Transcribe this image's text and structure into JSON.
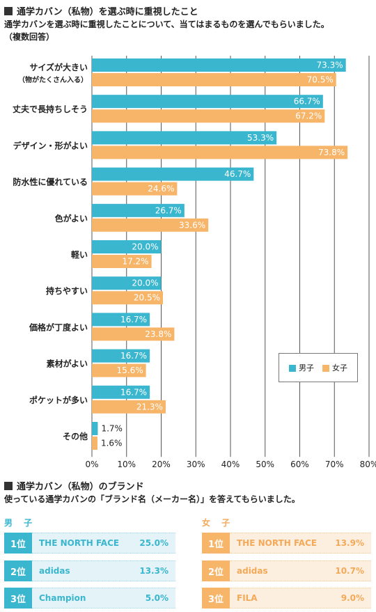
{
  "section1": {
    "title": "通学カバン（私物）を選ぶ時に重視したこと",
    "desc_line1": "通学カバンを選ぶ時に重視したことについて、当てはまるものを選んでもらいました。",
    "desc_line2": "（複数回答）"
  },
  "chart_data": {
    "type": "bar",
    "orientation": "horizontal",
    "categories": [
      [
        "サイズが大きい",
        "（物がたくさん入る）"
      ],
      [
        "丈夫で長持ちしそう"
      ],
      [
        "デザイン・形がよい"
      ],
      [
        "防水性に優れている"
      ],
      [
        "色がよい"
      ],
      [
        "軽い"
      ],
      [
        "持ちやすい"
      ],
      [
        "価格が丁度よい"
      ],
      [
        "素材がよい"
      ],
      [
        "ポケットが多い"
      ],
      [
        "その他"
      ]
    ],
    "series": [
      {
        "name": "男子",
        "color": "#3ab6cf",
        "values": [
          73.3,
          66.7,
          53.3,
          46.7,
          26.7,
          20.0,
          20.0,
          16.7,
          16.7,
          16.7,
          1.7
        ]
      },
      {
        "name": "女子",
        "color": "#f7b56a",
        "values": [
          70.5,
          67.2,
          73.8,
          24.6,
          33.6,
          17.2,
          20.5,
          23.8,
          15.6,
          21.3,
          1.6
        ]
      }
    ],
    "value_labels": [
      [
        "73.3%",
        "66.7%",
        "53.3%",
        "46.7%",
        "26.7%",
        "20.0%",
        "20.0%",
        "16.7%",
        "16.7%",
        "16.7%",
        "1.7%"
      ],
      [
        "70.5%",
        "67.2%",
        "73.8%",
        "24.6%",
        "33.6%",
        "17.2%",
        "20.5%",
        "23.8%",
        "15.6%",
        "21.3%",
        "1.6%"
      ]
    ],
    "xlim": [
      0,
      80
    ],
    "xticks": [
      "0%",
      "10%",
      "20%",
      "30%",
      "40%",
      "50%",
      "60%",
      "70%",
      "80%"
    ],
    "grid": true,
    "legend": "lower-right"
  },
  "section2": {
    "title": "通学カバン（私物）のブランド",
    "desc": "使っている通学カバンの「ブランド名（メーカー名）」を答えてもらいました。"
  },
  "brands": {
    "male": {
      "label": "男 子",
      "color": "#3ab6cf",
      "ranks": [
        {
          "rank": "1位",
          "brand": "THE NORTH FACE",
          "pct": "25.0%"
        },
        {
          "rank": "2位",
          "brand": "adidas",
          "pct": "13.3%"
        },
        {
          "rank": "3位",
          "brand": "Champion",
          "pct": "5.0%"
        }
      ]
    },
    "female": {
      "label": "女 子",
      "color": "#f7b56a",
      "ranks": [
        {
          "rank": "1位",
          "brand": "THE NORTH FACE",
          "pct": "13.9%"
        },
        {
          "rank": "2位",
          "brand": "adidas",
          "pct": "10.7%"
        },
        {
          "rank": "3位",
          "brand": "FILA",
          "pct": "9.0%"
        }
      ]
    }
  }
}
